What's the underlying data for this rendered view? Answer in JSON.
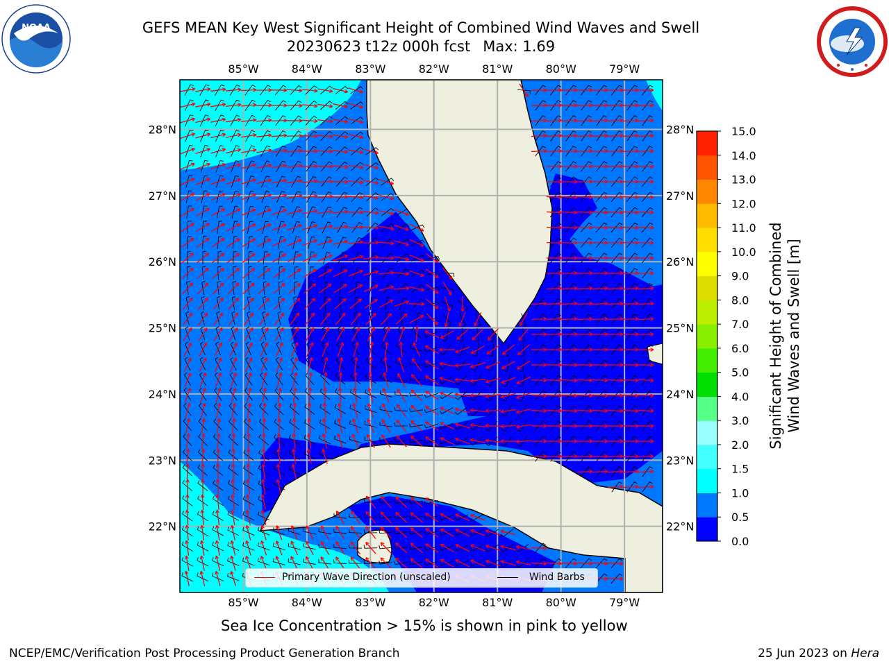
{
  "title": {
    "line1": "GEFS MEAN Key West Significant Height of Combined Wind Waves and Swell",
    "line2_date": "20230623 t12z 000h fcst",
    "line2_max": "Max: 1.69"
  },
  "logos": {
    "left": "NOAA logo (NATIONAL OCEANIC AND ATMOSPHERIC ADMINISTRATION, U.S. DEPARTMENT OF COMMERCE)",
    "right": "NATIONAL WEATHER SERVICE logo"
  },
  "axes": {
    "lon_ticks": [
      "85°W",
      "84°W",
      "83°W",
      "82°W",
      "81°W",
      "80°W",
      "79°W"
    ],
    "lat_ticks": [
      "28°N",
      "27°N",
      "26°N",
      "25°N",
      "24°N",
      "23°N",
      "22°N"
    ],
    "lon_range": [
      -86.0,
      -78.4
    ],
    "lat_range": [
      21.0,
      28.75
    ]
  },
  "colorbar": {
    "label": "Significant Height of Combined Wind Waves and Swell [m]",
    "label_line1": "Significant Height of Combined",
    "label_line2": "Wind Waves and Swell [m]",
    "ticks": [
      "15.0",
      "14.0",
      "13.0",
      "12.0",
      "11.0",
      "10.0",
      "9.0",
      "8.0",
      "7.0",
      "6.0",
      "5.0",
      "4.0",
      "3.0",
      "2.0",
      "1.5",
      "1.0",
      "0.5",
      "0.0"
    ],
    "levels": [
      0.0,
      0.5,
      1.0,
      1.5,
      2.0,
      3.0,
      4.0,
      5.0,
      6.0,
      7.0,
      8.0,
      9.0,
      10.0,
      11.0,
      12.0,
      13.0,
      14.0,
      15.0
    ],
    "colors": [
      "#0000ff",
      "#0077ff",
      "#00ffff",
      "#44ffff",
      "#99ffff",
      "#55ff88",
      "#00dd00",
      "#44ee00",
      "#88ee00",
      "#bbee00",
      "#dddd00",
      "#ffff00",
      "#ffdd00",
      "#ffbb00",
      "#ff8800",
      "#ff5500",
      "#ff2200"
    ]
  },
  "legend": {
    "primary_wave": "Primary Wave Direction (unscaled)",
    "primary_wave_color": "#ff0000",
    "wind_barbs": "Wind Barbs",
    "wind_barbs_color": "#000000"
  },
  "colors": {
    "land": "#efefdf",
    "grid": "#b0b0b0"
  },
  "sea_ice_note": "Sea Ice Concentration > 15% is shown in pink to yellow",
  "footer": {
    "left": "NCEP/EMC/Verification Post Processing Product Generation Branch",
    "right_date": "25 Jun 2023 on",
    "right_host": "Hera"
  }
}
